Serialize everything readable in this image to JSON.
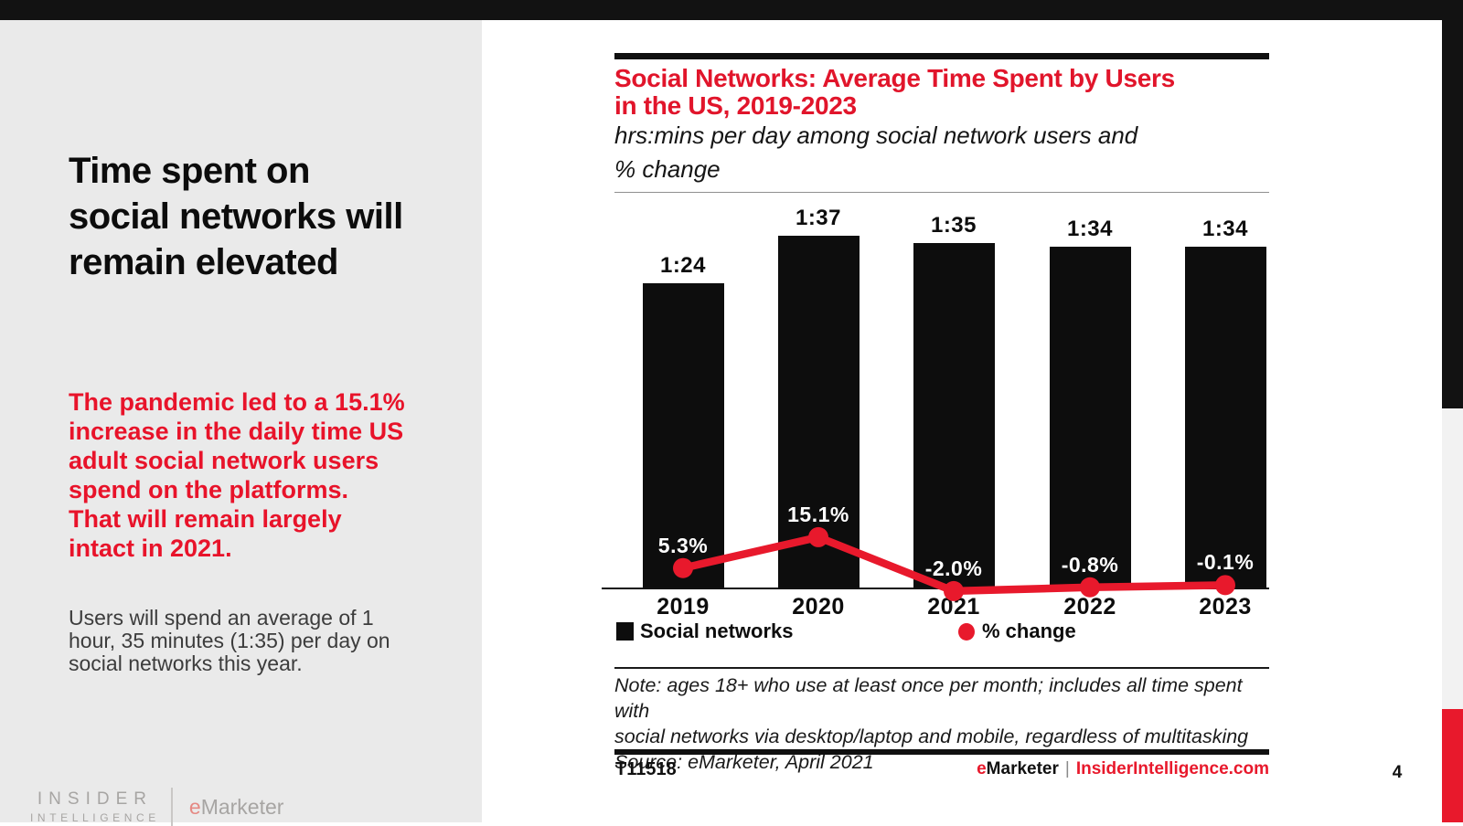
{
  "page": {
    "number": "4"
  },
  "colors": {
    "accent_red": "#e8192c",
    "bar_black": "#0d0d0d",
    "panel_gray": "#eaeaea"
  },
  "sidebar": {
    "title": "Time spent on social networks will remain elevated",
    "highlight": "The pandemic led to a 15.1% increase in the daily time US adult social network users spend on the platforms. That will remain largely intact in 2021.",
    "body": "Users will spend an average of 1 hour, 35 minutes (1:35) per day on social networks this year.",
    "logo": {
      "line1": "INSIDER",
      "line2": "INTELLIGENCE",
      "brand_e": "e",
      "brand_rest": "Marketer"
    }
  },
  "chart": {
    "title_lines": [
      "Social Networks: Average Time Spent by Users",
      "in the US, 2019-2023"
    ],
    "subtitle_lines": [
      "hrs:mins per day among social network users and",
      "% change"
    ],
    "note_lines": [
      "Note: ages 18+ who use at least once per month; includes all time spent with",
      "social networks via desktop/laptop and mobile, regardless of multitasking",
      "Source: eMarketer, April 2021"
    ],
    "footer_id": "T11518",
    "footer_brand_e": "e",
    "footer_brand_rest": "Marketer",
    "footer_divider": "|",
    "footer_site": "InsiderIntelligence.com"
  },
  "chart_data": {
    "type": "bar",
    "title": "Social Networks: Average Time Spent by Users in the US, 2019-2023",
    "subtitle": "hrs:mins per day among social network users and % change",
    "categories": [
      "2019",
      "2020",
      "2021",
      "2022",
      "2023"
    ],
    "series": [
      {
        "name": "Social networks",
        "type": "bar",
        "unit": "hrs:mins per day",
        "labels": [
          "1:24",
          "1:37",
          "1:35",
          "1:34",
          "1:34"
        ],
        "values_minutes": [
          84,
          97,
          95,
          94,
          94
        ]
      },
      {
        "name": "% change",
        "type": "line",
        "labels": [
          "5.3%",
          "15.1%",
          "-2.0%",
          "-0.8%",
          "-0.1%"
        ],
        "values": [
          5.3,
          15.1,
          -2.0,
          -0.8,
          -0.1
        ]
      }
    ],
    "legend": [
      "Social networks",
      "% change"
    ],
    "legend_position": "bottom",
    "grid": false,
    "colors": {
      "bar": "#0d0d0d",
      "line": "#e8192c"
    }
  }
}
